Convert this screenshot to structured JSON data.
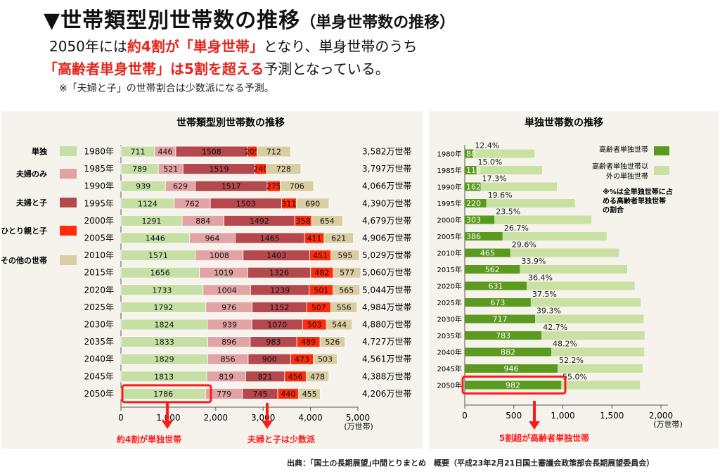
{
  "header": {
    "title_marker": "▼",
    "title_main": "世帯類型別世帯数の推移",
    "title_sub": "（単身世帯数の推移）",
    "line1_a": "2050年には",
    "line1_b": "約4割が「単身世帯」",
    "line1_c": "となり、単身世帯のうち",
    "line2_a": "「高齢者単身世帯」は5割を超える",
    "line2_b": "予測となっている。",
    "line3": "※「夫婦と子」の世帯割合は少数派になる予測。"
  },
  "source": "出典：｢国土の長期展望｣中間とりまとめ　概要（平成23年2月21日国土審議会政策部会長期展望委員会）",
  "colors": {
    "single": "#c5dfa4",
    "couple": "#e2a3a4",
    "couple_child": "#b4484c",
    "single_parent": "#ff2b0a",
    "other": "#d9cda3",
    "elderly": "#5a9a1e",
    "non_elderly": "#c9e2a3",
    "highlight": "#ff1a1a"
  },
  "chart_data": [
    {
      "type": "bar",
      "title": "世帯類型別世帯数の推移",
      "orientation": "horizontal",
      "stacked": true,
      "categories": [
        "1980年",
        "1985年",
        "1990年",
        "1995年",
        "2000年",
        "2005年",
        "2010年",
        "2015年",
        "2020年",
        "2025年",
        "2030年",
        "2035年",
        "2040年",
        "2045年",
        "2050年"
      ],
      "series": [
        {
          "name": "単独",
          "values": [
            711,
            789,
            939,
            1124,
            1291,
            1446,
            1571,
            1656,
            1733,
            1792,
            1824,
            1833,
            1829,
            1813,
            1786
          ]
        },
        {
          "name": "夫婦のみ",
          "values": [
            446,
            521,
            629,
            762,
            884,
            964,
            1008,
            1019,
            1004,
            976,
            939,
            896,
            856,
            819,
            779
          ]
        },
        {
          "name": "夫婦と子",
          "values": [
            1508,
            1519,
            1517,
            1503,
            1492,
            1465,
            1403,
            1326,
            1239,
            1152,
            1070,
            983,
            900,
            821,
            745
          ]
        },
        {
          "name": "ひとり親と子",
          "values": [
            205,
            240,
            275,
            311,
            358,
            411,
            451,
            482,
            501,
            507,
            503,
            489,
            473,
            456,
            440
          ]
        },
        {
          "name": "その他の世帯",
          "values": [
            712,
            728,
            706,
            690,
            654,
            621,
            595,
            577,
            565,
            556,
            544,
            526,
            503,
            478,
            455
          ]
        }
      ],
      "totals": [
        "3,582万世帯",
        "3,797万世帯",
        "4,066万世帯",
        "4,390万世帯",
        "4,679万世帯",
        "4,906万世帯",
        "5,029万世帯",
        "5,060万世帯",
        "5,044万世帯",
        "4,984万世帯",
        "4,880万世帯",
        "4,727万世帯",
        "4,561万世帯",
        "4,388万世帯",
        "4,206万世帯"
      ],
      "xlim": [
        0,
        5000
      ],
      "xticks": [
        "0",
        "1,000",
        "2,000",
        "3,000",
        "4,000",
        "5,000"
      ],
      "xunit": "(万世帯)",
      "legend_position": "left",
      "annotations": [
        "約4割が単独世帯",
        "夫婦と子は少数派"
      ]
    },
    {
      "type": "bar",
      "title": "単独世帯数の推移",
      "orientation": "horizontal",
      "stacked": true,
      "categories": [
        "1980年",
        "1985年",
        "1990年",
        "1995年",
        "2000年",
        "2005年",
        "2010年",
        "2015年",
        "2020年",
        "2025年",
        "2030年",
        "2035年",
        "2040年",
        "2045年",
        "2050年"
      ],
      "series": [
        {
          "name": "高齢者単独世帯",
          "values": [
            88,
            118,
            162,
            220,
            303,
            386,
            465,
            562,
            631,
            673,
            717,
            783,
            882,
            946,
            982
          ]
        },
        {
          "name": "高齢者単独世帯以外の単独世帯",
          "values": [
            623,
            671,
            777,
            904,
            988,
            1060,
            1106,
            1094,
            1102,
            1119,
            1107,
            1050,
            947,
            867,
            804
          ]
        }
      ],
      "percent_labels": [
        "12.4%",
        "15.0%",
        "17.3%",
        "19.6%",
        "23.5%",
        "26.7%",
        "29.6%",
        "33.9%",
        "36.4%",
        "37.5%",
        "39.3%",
        "42.7%",
        "48.2%",
        "52.2%",
        "55.0%"
      ],
      "xlim": [
        0,
        2000
      ],
      "xticks": [
        "0",
        "500",
        "1,000",
        "1,500",
        "2,000"
      ],
      "xunit": "(万世帯)",
      "legend_position": "top-right",
      "legend_names": [
        "高齢者単独世帯",
        "高齢者単独世帯以",
        "外の単独世帯"
      ],
      "note": [
        "※%は全単独世帯に占",
        "める高齢者単独世帯",
        "の割合"
      ],
      "annotations": [
        "5割超が高齢者単独世帯"
      ]
    }
  ]
}
